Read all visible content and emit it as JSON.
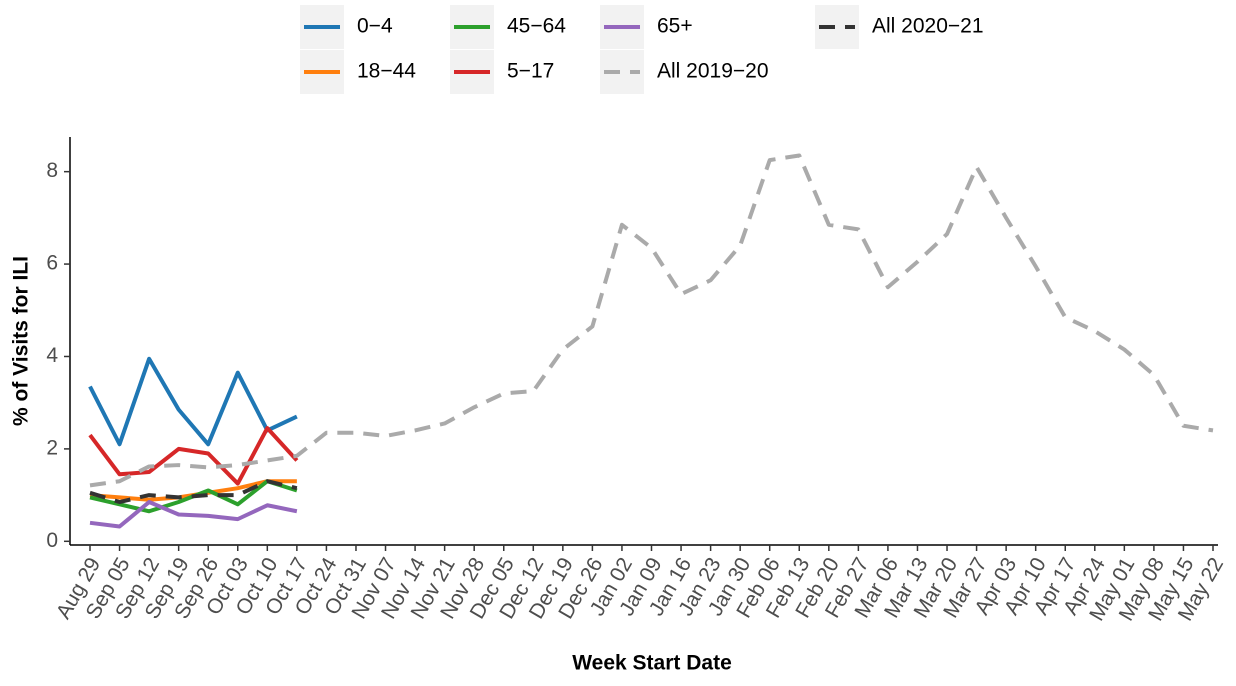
{
  "chart_data": {
    "type": "line",
    "x_label": "Week Start Date",
    "y_label": "% of Visits for ILI",
    "categories": [
      "Aug 29",
      "Sep 05",
      "Sep 12",
      "Sep 19",
      "Sep 26",
      "Oct 03",
      "Oct 10",
      "Oct 17",
      "Oct 24",
      "Oct 31",
      "Nov 07",
      "Nov 14",
      "Nov 21",
      "Nov 28",
      "Dec 05",
      "Dec 12",
      "Dec 19",
      "Dec 26",
      "Jan 02",
      "Jan 09",
      "Jan 16",
      "Jan 23",
      "Jan 30",
      "Feb 06",
      "Feb 13",
      "Feb 20",
      "Feb 27",
      "Mar 06",
      "Mar 13",
      "Mar 20",
      "Mar 27",
      "Apr 03",
      "Apr 10",
      "Apr 17",
      "Apr 24",
      "May 01",
      "May 08",
      "May 15",
      "May 22"
    ],
    "series": [
      {
        "name": "0−4",
        "color": "#1f77b4",
        "dashed": false,
        "values": [
          3.35,
          2.1,
          3.95,
          2.85,
          2.1,
          3.65,
          2.4,
          2.7,
          null,
          null,
          null,
          null,
          null,
          null,
          null,
          null,
          null,
          null,
          null,
          null,
          null,
          null,
          null,
          null,
          null,
          null,
          null,
          null,
          null,
          null,
          null,
          null,
          null,
          null,
          null,
          null,
          null,
          null,
          null
        ]
      },
      {
        "name": "18−44",
        "color": "#ff7f0e",
        "dashed": false,
        "values": [
          1.0,
          0.95,
          0.9,
          0.95,
          1.05,
          1.15,
          1.3,
          1.3,
          null,
          null,
          null,
          null,
          null,
          null,
          null,
          null,
          null,
          null,
          null,
          null,
          null,
          null,
          null,
          null,
          null,
          null,
          null,
          null,
          null,
          null,
          null,
          null,
          null,
          null,
          null,
          null,
          null,
          null,
          null
        ]
      },
      {
        "name": "45−64",
        "color": "#2ca02c",
        "dashed": false,
        "values": [
          0.95,
          0.8,
          0.65,
          0.85,
          1.1,
          0.8,
          1.3,
          1.1,
          null,
          null,
          null,
          null,
          null,
          null,
          null,
          null,
          null,
          null,
          null,
          null,
          null,
          null,
          null,
          null,
          null,
          null,
          null,
          null,
          null,
          null,
          null,
          null,
          null,
          null,
          null,
          null,
          null,
          null,
          null
        ]
      },
      {
        "name": "5−17",
        "color": "#d62728",
        "dashed": false,
        "values": [
          2.3,
          1.45,
          1.5,
          2.0,
          1.9,
          1.25,
          2.45,
          1.75,
          null,
          null,
          null,
          null,
          null,
          null,
          null,
          null,
          null,
          null,
          null,
          null,
          null,
          null,
          null,
          null,
          null,
          null,
          null,
          null,
          null,
          null,
          null,
          null,
          null,
          null,
          null,
          null,
          null,
          null,
          null
        ]
      },
      {
        "name": "65+",
        "color": "#9467bd",
        "dashed": false,
        "values": [
          0.4,
          0.32,
          0.85,
          0.58,
          0.55,
          0.48,
          0.78,
          0.65,
          null,
          null,
          null,
          null,
          null,
          null,
          null,
          null,
          null,
          null,
          null,
          null,
          null,
          null,
          null,
          null,
          null,
          null,
          null,
          null,
          null,
          null,
          null,
          null,
          null,
          null,
          null,
          null,
          null,
          null,
          null
        ]
      },
      {
        "name": "All 2019−20",
        "color": "#aaaaaa",
        "dashed": true,
        "values": [
          1.21,
          1.3,
          1.62,
          1.65,
          1.6,
          1.65,
          1.75,
          1.85,
          2.35,
          2.35,
          2.28,
          2.4,
          2.55,
          2.9,
          3.2,
          3.25,
          4.15,
          4.65,
          6.85,
          6.35,
          5.35,
          5.65,
          6.4,
          8.25,
          8.35,
          6.85,
          6.75,
          5.5,
          6.05,
          6.65,
          8.1,
          7.0,
          5.95,
          4.85,
          4.55,
          4.15,
          3.6,
          2.5,
          2.4
        ]
      },
      {
        "name": "All 2020−21",
        "color": "#333333",
        "dashed": true,
        "values": [
          1.05,
          0.85,
          1.0,
          0.95,
          1.0,
          1.0,
          1.3,
          1.15,
          null,
          null,
          null,
          null,
          null,
          null,
          null,
          null,
          null,
          null,
          null,
          null,
          null,
          null,
          null,
          null,
          null,
          null,
          null,
          null,
          null,
          null,
          null,
          null,
          null,
          null,
          null,
          null,
          null,
          null,
          null
        ]
      }
    ],
    "ylim": [
      -0.08,
      8.75
    ],
    "yticks": [
      0,
      2,
      4,
      6,
      8
    ],
    "grid": false,
    "legend": "top"
  }
}
